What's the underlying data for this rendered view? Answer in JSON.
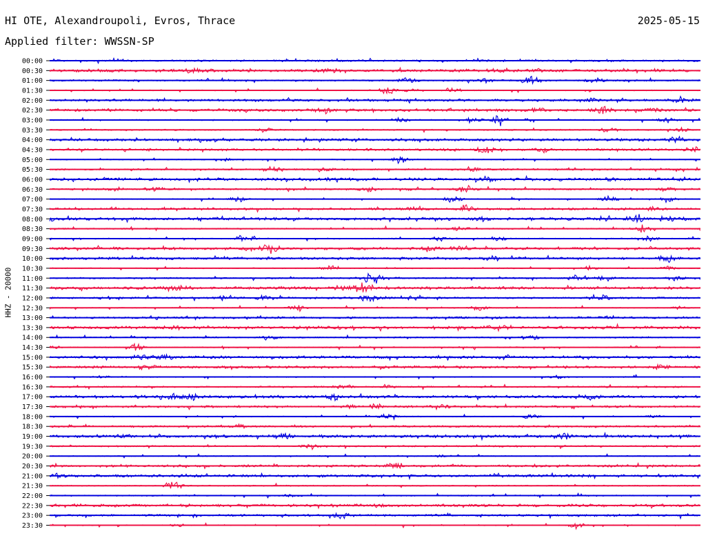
{
  "header": {
    "station": "HI OTE, Alexandroupoli, Evros, Thrace",
    "date": "2025-05-15",
    "filter": "Applied filter: WWSSN-SP"
  },
  "chart_data": {
    "type": "line",
    "title": "HI OTE, Alexandroupoli, Evros, Thrace",
    "ylabel": "HHZ - 20000",
    "colors": [
      "#0000dd",
      "#ee1144"
    ],
    "row_labels": [
      "00:00",
      "00:30",
      "01:00",
      "01:30",
      "02:00",
      "02:30",
      "03:00",
      "03:30",
      "04:00",
      "04:30",
      "05:00",
      "05:30",
      "06:00",
      "06:30",
      "07:00",
      "07:30",
      "08:00",
      "08:30",
      "09:00",
      "09:30",
      "10:00",
      "10:30",
      "11:00",
      "11:30",
      "12:00",
      "12:30",
      "13:00",
      "13:30",
      "14:00",
      "14:30",
      "15:00",
      "15:30",
      "16:00",
      "16:30",
      "17:00",
      "17:30",
      "18:00",
      "18:30",
      "19:00",
      "19:30",
      "20:00",
      "20:30",
      "21:00",
      "21:30",
      "22:00",
      "22:30",
      "23:00",
      "23:30"
    ],
    "events": [
      [
        [
          0.66,
          0.8
        ],
        [
          0.86,
          0.6
        ]
      ],
      [
        [
          0.22,
          3.5
        ],
        [
          0.43,
          2.5
        ],
        [
          0.69,
          1.5
        ],
        [
          0.75,
          1.2
        ]
      ],
      [
        [
          0.55,
          4
        ],
        [
          0.67,
          3
        ],
        [
          0.74,
          7
        ],
        [
          0.84,
          4
        ]
      ],
      [
        [
          0.52,
          5
        ],
        [
          0.56,
          3
        ],
        [
          0.62,
          4
        ]
      ],
      [
        [
          0.83,
          3
        ],
        [
          0.97,
          2.5
        ]
      ],
      [
        [
          0.42,
          4
        ],
        [
          0.75,
          3
        ],
        [
          0.85,
          5
        ],
        [
          0.93,
          2
        ]
      ],
      [
        [
          0.54,
          4
        ],
        [
          0.65,
          4
        ],
        [
          0.69,
          6
        ],
        [
          0.95,
          4
        ]
      ],
      [
        [
          0.33,
          4
        ],
        [
          0.86,
          3.5
        ],
        [
          0.97,
          3
        ]
      ],
      [
        [
          0.96,
          4
        ]
      ],
      [
        [
          0.67,
          5
        ],
        [
          0.76,
          4
        ],
        [
          0.99,
          3
        ]
      ],
      [
        [
          0.54,
          5
        ],
        [
          0.27,
          2
        ]
      ],
      [
        [
          0.34,
          4
        ],
        [
          0.42,
          3
        ],
        [
          0.65,
          3
        ]
      ],
      [
        [
          0.67,
          3
        ],
        [
          0.86,
          2
        ]
      ],
      [
        [
          0.1,
          3
        ],
        [
          0.16,
          4
        ],
        [
          0.49,
          3
        ],
        [
          0.64,
          5
        ],
        [
          0.95,
          2.5
        ]
      ],
      [
        [
          0.29,
          4
        ],
        [
          0.62,
          5
        ],
        [
          0.86,
          4
        ],
        [
          0.95,
          3
        ]
      ],
      [
        [
          0.64,
          5
        ],
        [
          0.56,
          2.5
        ],
        [
          0.93,
          3
        ]
      ],
      [
        [
          0.0,
          4
        ],
        [
          0.67,
          3
        ],
        [
          0.9,
          5
        ],
        [
          0.95,
          3
        ]
      ],
      [
        [
          0.63,
          3
        ],
        [
          0.91,
          5
        ]
      ],
      [
        [
          0.3,
          6
        ],
        [
          0.6,
          3
        ],
        [
          0.69,
          4
        ],
        [
          0.92,
          5
        ]
      ],
      [
        [
          0.34,
          6
        ],
        [
          0.58,
          4
        ],
        [
          0.63,
          3
        ]
      ],
      [
        [
          0.95,
          5
        ],
        [
          0.68,
          3
        ]
      ],
      [
        [
          0.43,
          3
        ],
        [
          0.83,
          3
        ],
        [
          0.95,
          2.5
        ]
      ],
      [
        [
          0.49,
          6
        ],
        [
          0.5,
          4
        ],
        [
          0.81,
          4
        ],
        [
          0.85,
          3
        ],
        [
          0.96,
          3
        ]
      ],
      [
        [
          0.48,
          6
        ],
        [
          0.2,
          3
        ],
        [
          0.45,
          2.5
        ]
      ],
      [
        [
          0.27,
          5
        ],
        [
          0.33,
          3
        ],
        [
          0.49,
          6
        ],
        [
          0.56,
          3
        ],
        [
          0.85,
          3
        ]
      ],
      [
        [
          0.38,
          4
        ],
        [
          0.66,
          4
        ],
        [
          0.97,
          2.5
        ]
      ],
      [
        [
          0.86,
          2.5
        ]
      ],
      [
        [
          0.69,
          4
        ],
        [
          0.2,
          2
        ]
      ],
      [
        [
          0.34,
          3
        ],
        [
          0.74,
          4
        ]
      ],
      [
        [
          0.13,
          5
        ],
        [
          0.0,
          3
        ]
      ],
      [
        [
          0.18,
          4
        ],
        [
          0.14,
          3
        ],
        [
          0.7,
          3
        ]
      ],
      [
        [
          0.15,
          3
        ],
        [
          0.94,
          3
        ]
      ],
      [
        [
          0.08,
          2.5
        ],
        [
          0.78,
          2.5
        ]
      ],
      [
        [
          0.45,
          3
        ],
        [
          0.52,
          2
        ]
      ],
      [
        [
          0.19,
          5
        ],
        [
          0.22,
          4
        ],
        [
          0.44,
          5
        ],
        [
          0.83,
          3
        ]
      ],
      [
        [
          0.46,
          4
        ],
        [
          0.5,
          4
        ],
        [
          0.6,
          4
        ]
      ],
      [
        [
          0.52,
          4
        ],
        [
          0.74,
          4
        ],
        [
          0.93,
          2
        ]
      ],
      [
        [
          0.29,
          2.5
        ]
      ],
      [
        [
          0.11,
          3
        ],
        [
          0.36,
          5
        ],
        [
          0.79,
          5
        ]
      ],
      [
        [
          0.4,
          2
        ]
      ],
      [
        [
          0.6,
          1.5
        ]
      ],
      [
        [
          0.53,
          5
        ]
      ],
      [
        [
          0.01,
          3
        ]
      ],
      [
        [
          0.19,
          6
        ]
      ],
      [
        [
          0.37,
          1.5
        ]
      ],
      [
        [
          0.5,
          1.5
        ]
      ],
      [
        [
          0.45,
          4
        ]
      ],
      [
        [
          0.2,
          2
        ],
        [
          0.81,
          4
        ]
      ]
    ]
  }
}
